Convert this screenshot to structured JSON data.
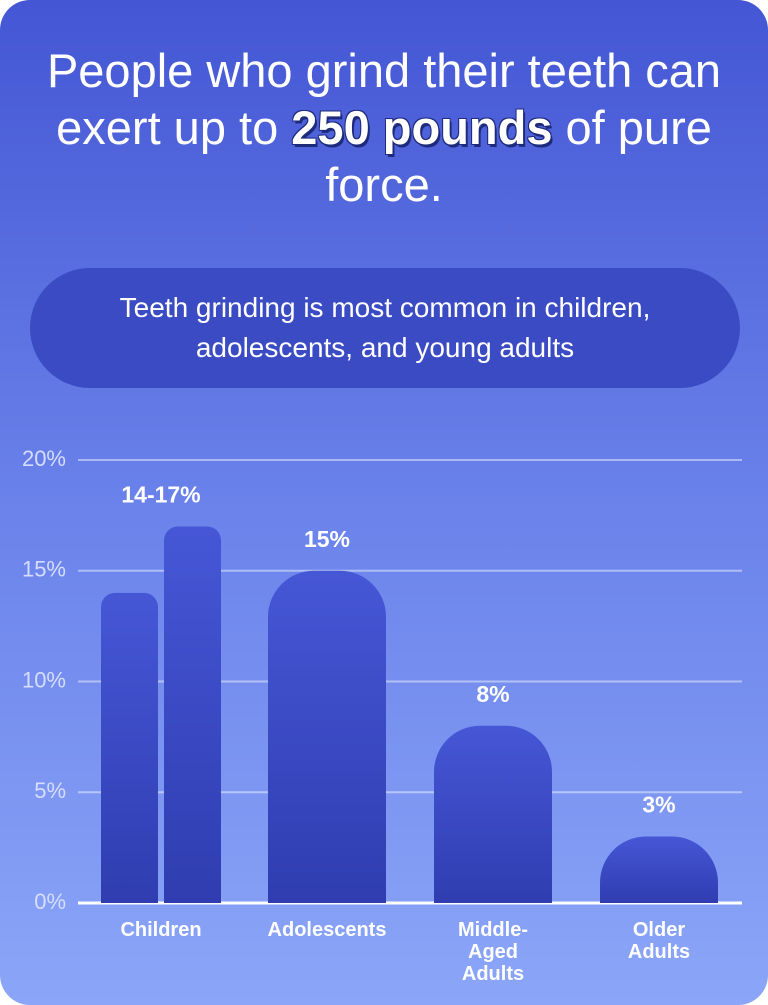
{
  "chart_data": {
    "type": "bar",
    "title_before": "People who grind their teeth can exert up to",
    "title_highlight": "250 pounds",
    "title_after": "of pure force.",
    "subtitle": "Teeth grinding is most common in children, adolescents, and young adults",
    "categories": [
      "Children",
      "Adolescents",
      "Middle-Aged Adults",
      "Older Adults"
    ],
    "values": [
      [
        14,
        17
      ],
      [
        15
      ],
      [
        8
      ],
      [
        3
      ]
    ],
    "value_labels": [
      "14-17%",
      "15%",
      "8%",
      "3%"
    ],
    "color": "#3d4fcc",
    "ylim": [
      0,
      20
    ],
    "yticks": [
      {
        "value": 0,
        "label": "0%"
      },
      {
        "value": 5,
        "label": "5%"
      },
      {
        "value": 10,
        "label": "10%"
      },
      {
        "value": 15,
        "label": "15%"
      },
      {
        "value": 20,
        "label": "20%"
      }
    ],
    "grid": true
  }
}
